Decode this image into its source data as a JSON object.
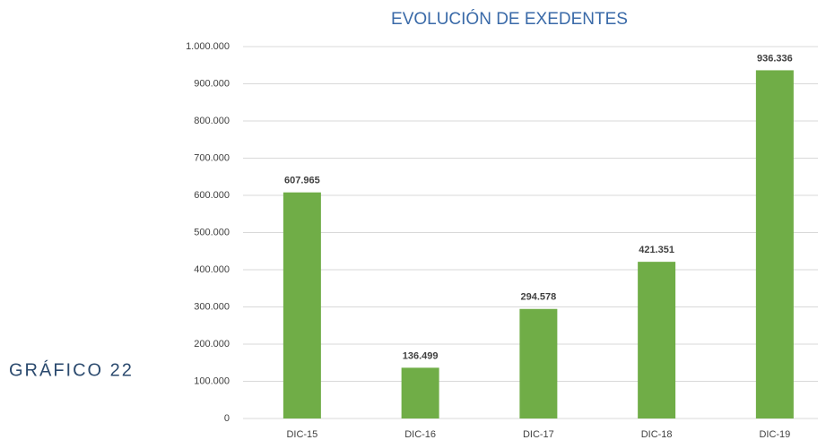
{
  "caption": "GRÁFICO 22",
  "chart_data": {
    "type": "bar",
    "title": "EVOLUCIÓN DE EXEDENTES",
    "categories": [
      "DIC-15",
      "DIC-16",
      "DIC-17",
      "DIC-18",
      "DIC-19"
    ],
    "values": [
      607965,
      136499,
      294578,
      421351,
      936336
    ],
    "value_labels": [
      "607.965",
      "136.499",
      "294.578",
      "421.351",
      "936.336"
    ],
    "color": "#70ad47",
    "ylim": [
      0,
      1000000
    ],
    "yticks": [
      0,
      {
        "value": 100000,
        "label": "100.000"
      },
      {
        "value": 200000,
        "label": "200.000"
      },
      {
        "value": 300000,
        "label": "300.000"
      },
      {
        "value": 400000,
        "label": "400.000"
      },
      {
        "value": 500000,
        "label": "500.000"
      },
      {
        "value": 600000,
        "label": "600.000"
      },
      {
        "value": 700000,
        "label": "700.000"
      },
      {
        "value": 800000,
        "label": "800.000"
      },
      {
        "value": 900000,
        "label": "900.000"
      },
      {
        "value": 1000000,
        "label": "1.000.000"
      }
    ],
    "grid": true
  }
}
